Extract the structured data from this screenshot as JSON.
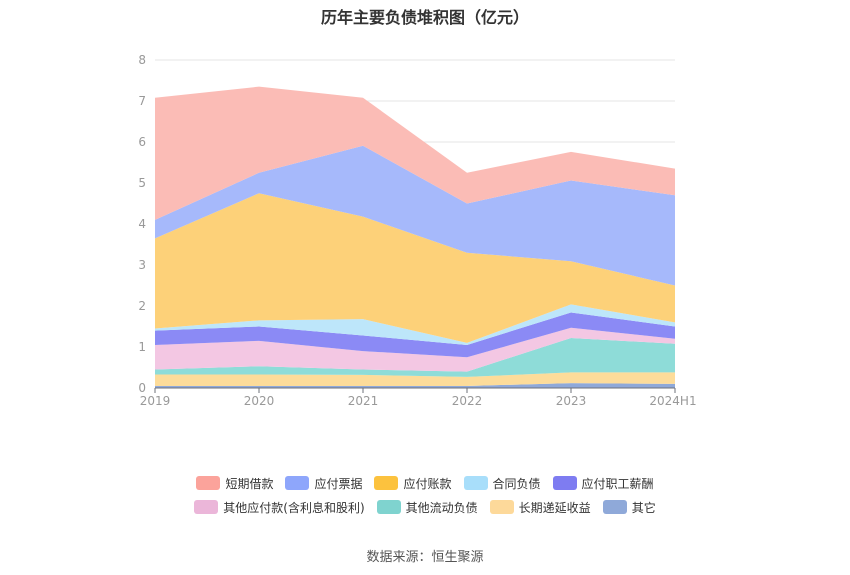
{
  "chart_data": {
    "type": "area",
    "stacked": true,
    "title": "历年主要负债堆积图（亿元）",
    "categories": [
      "2019",
      "2020",
      "2021",
      "2022",
      "2023",
      "2024H1"
    ],
    "ylim": [
      0,
      8
    ],
    "yticks": [
      "0",
      "1",
      "2",
      "3",
      "4",
      "5",
      "6",
      "7",
      "8"
    ],
    "grid": true,
    "legend_position": "bottom",
    "series": [
      {
        "name": "其它",
        "color": "#8fa9d9",
        "values": [
          0.05,
          0.05,
          0.05,
          0.05,
          0.12,
          0.1
        ]
      },
      {
        "name": "长期递延收益",
        "color": "#fddc9a",
        "values": [
          0.28,
          0.28,
          0.27,
          0.22,
          0.26,
          0.28
        ]
      },
      {
        "name": "其他流动负债",
        "color": "#8edcd8",
        "values": [
          0.12,
          0.2,
          0.13,
          0.13,
          0.84,
          0.7
        ]
      },
      {
        "name": "其他应付款(含利息和股利)",
        "color": "#f3c7e3",
        "values": [
          0.6,
          0.62,
          0.45,
          0.35,
          0.25,
          0.12
        ]
      },
      {
        "name": "应付职工薪酬",
        "color": "#8b8af5",
        "values": [
          0.35,
          0.35,
          0.38,
          0.3,
          0.37,
          0.3
        ]
      },
      {
        "name": "合同负债",
        "color": "#bde6fa",
        "values": [
          0.05,
          0.15,
          0.4,
          0.05,
          0.2,
          0.1
        ]
      },
      {
        "name": "应付账款",
        "color": "#fdd179",
        "values": [
          2.2,
          3.1,
          2.5,
          2.2,
          1.05,
          0.9
        ]
      },
      {
        "name": "应付票据",
        "color": "#a6b9fb",
        "values": [
          0.45,
          0.5,
          1.73,
          1.2,
          1.97,
          2.2
        ]
      },
      {
        "name": "短期借款",
        "color": "#fbbcb6",
        "values": [
          2.98,
          2.1,
          1.17,
          0.75,
          0.7,
          0.65
        ]
      }
    ],
    "legend": [
      [
        {
          "name": "短期借款",
          "color": "#fba39b"
        },
        {
          "name": "应付票据",
          "color": "#8ea6fb"
        },
        {
          "name": "应付账款",
          "color": "#fcc23e"
        },
        {
          "name": "合同负债",
          "color": "#a8defa"
        },
        {
          "name": "应付职工薪酬",
          "color": "#7e7cf1"
        }
      ],
      [
        {
          "name": "其他应付款(含利息和股利)",
          "color": "#ebb6d9"
        },
        {
          "name": "其他流动负债",
          "color": "#7fd3cf"
        },
        {
          "name": "长期递延收益",
          "color": "#fdd99a"
        },
        {
          "name": "其它",
          "color": "#8fa9d9"
        }
      ]
    ]
  },
  "source_note": "数据来源：恒生聚源"
}
